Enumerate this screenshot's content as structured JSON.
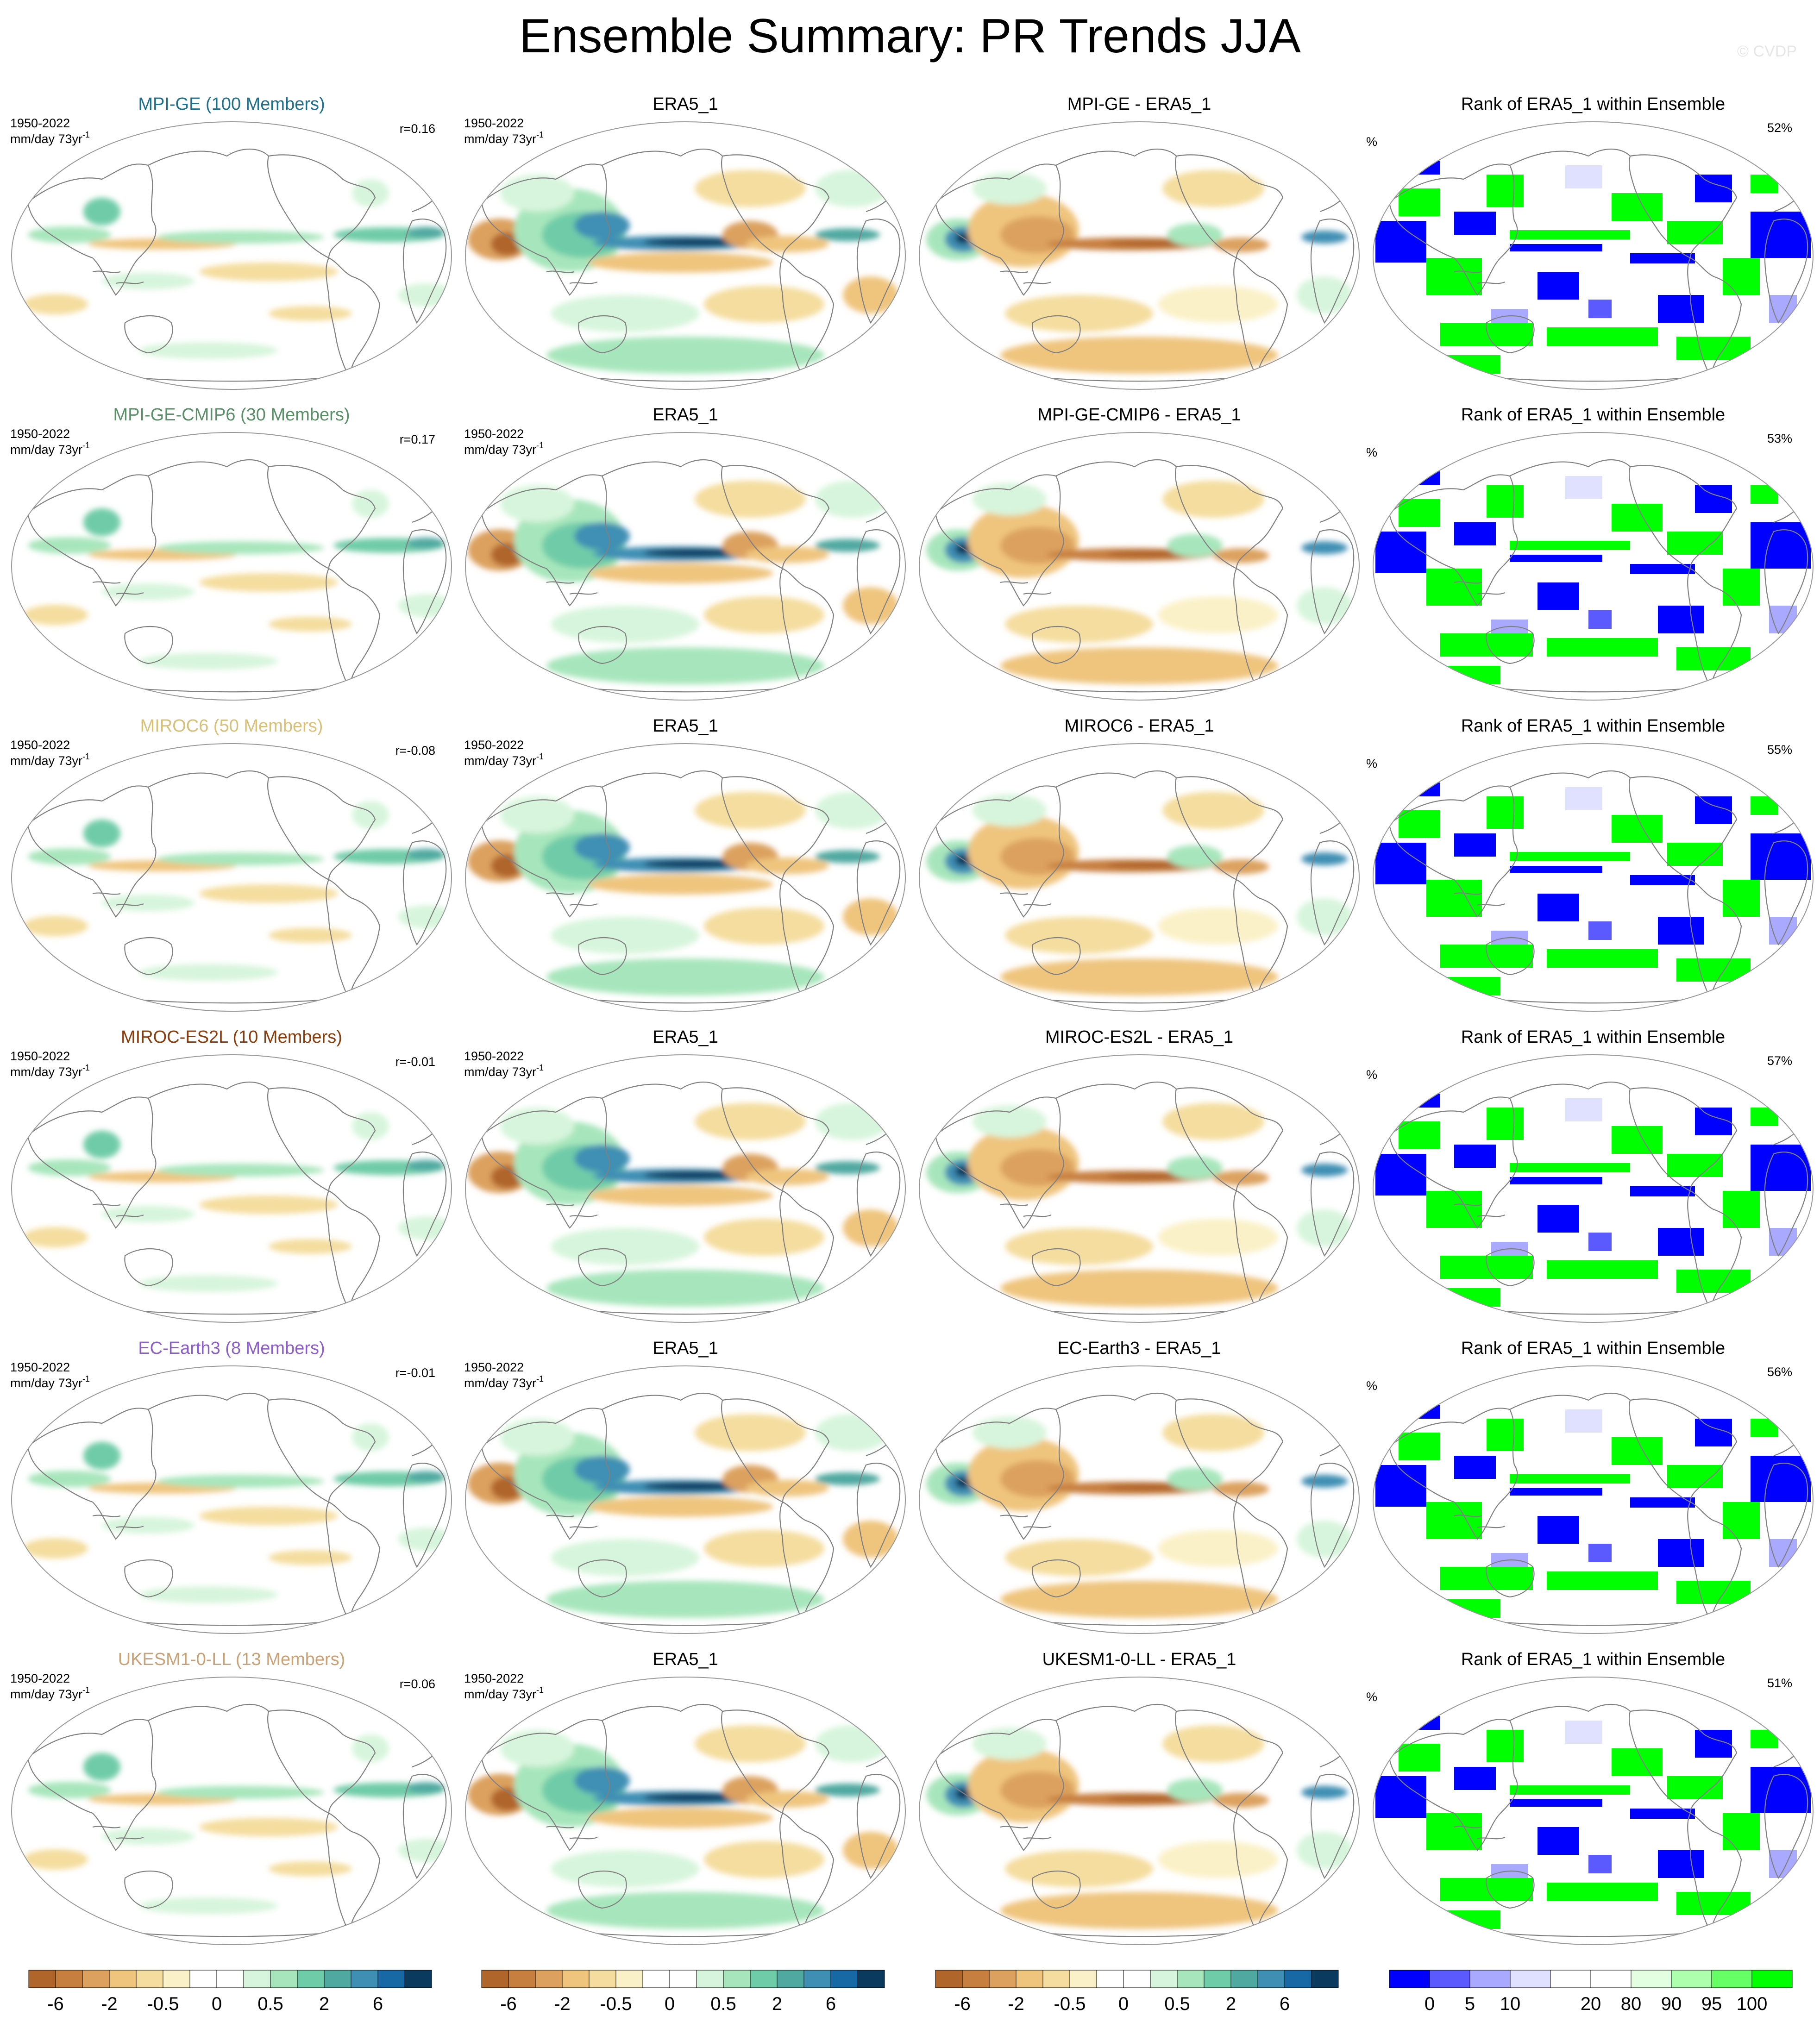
{
  "title": "Ensemble Summary: PR Trends JJA",
  "watermark": "© CVDP",
  "period": "1950-2022",
  "units": "mm/day 73yr",
  "units_sup": "-1",
  "rank_unit": "%",
  "obs_name": "ERA5_1",
  "rank_title": "Rank of ERA5_1 within Ensemble",
  "rows": [
    {
      "model": "MPI-GE (100 Members)",
      "model_color": "#1f6e8c",
      "r": "r=0.16",
      "diff": "MPI-GE - ERA5_1",
      "rank_pct": "52%"
    },
    {
      "model": "MPI-GE-CMIP6 (30 Members)",
      "model_color": "#5b8f6a",
      "r": "r=0.17",
      "diff": "MPI-GE-CMIP6 - ERA5_1",
      "rank_pct": "53%"
    },
    {
      "model": "MIROC6 (50 Members)",
      "model_color": "#d6c07a",
      "r": "r=-0.08",
      "diff": "MIROC6 - ERA5_1",
      "rank_pct": "55%"
    },
    {
      "model": "MIROC-ES2L (10 Members)",
      "model_color": "#8a3d0c",
      "r": "r=-0.01",
      "diff": "MIROC-ES2L - ERA5_1",
      "rank_pct": "57%"
    },
    {
      "model": "EC-Earth3 (8 Members)",
      "model_color": "#8c5fc7",
      "r": "r=-0.01",
      "diff": "EC-Earth3 - ERA5_1",
      "rank_pct": "56%"
    },
    {
      "model": "UKESM1-0-LL (13 Members)",
      "model_color": "#c9a277",
      "r": "r=0.06",
      "diff": "UKESM1-0-LL - ERA5_1",
      "rank_pct": "51%"
    }
  ],
  "trend_colorbar": {
    "colors": [
      "#b0652a",
      "#c77f3f",
      "#dca15f",
      "#efc57e",
      "#f4dd9e",
      "#fbf1c8",
      "#ffffff",
      "#ffffff",
      "#d7f5dc",
      "#a7e6bc",
      "#6fcca8",
      "#4fa9a0",
      "#3f8fb4",
      "#1669a5",
      "#0a3a5e"
    ],
    "labels": [
      "-6",
      "-2",
      "-0.5",
      "0",
      "0.5",
      "2",
      "6"
    ]
  },
  "rank_colorbar": {
    "colors": [
      "#0000ff",
      "#5a5aff",
      "#a9a9ff",
      "#e0e0ff",
      "#ffffff",
      "#ffffff",
      "#e2ffe2",
      "#adffad",
      "#66ff66",
      "#00ff00"
    ],
    "labels": [
      "0",
      "5",
      "10",
      "20",
      "80",
      "90",
      "95",
      "100"
    ]
  }
}
